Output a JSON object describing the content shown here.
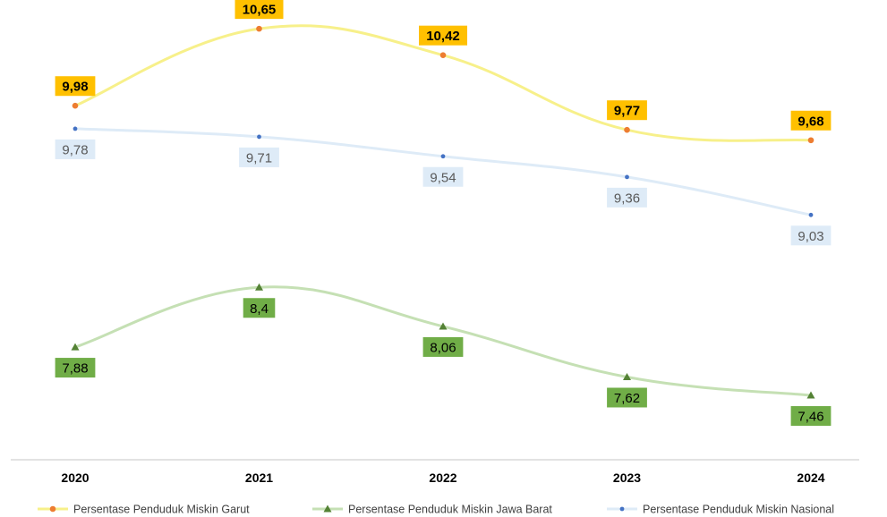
{
  "chart_data": {
    "type": "line",
    "title": "",
    "xlabel": "",
    "ylabel": "",
    "categories": [
      "2020",
      "2021",
      "2022",
      "2023",
      "2024"
    ],
    "ylim": [
      6.9,
      10.9
    ],
    "grid": false,
    "legend_position": "bottom",
    "series": [
      {
        "name": "Persentase Penduduk Miskin Garut",
        "values": [
          9.98,
          10.65,
          10.42,
          9.77,
          9.68
        ],
        "labels": [
          "9,98",
          "10,65",
          "10,42",
          "9,77",
          "9,68"
        ],
        "marker": "circle",
        "line_color": "#f7f08a",
        "marker_color": "#ed7d31",
        "label_bg": "#ffc000",
        "label_text_color": "#000000",
        "label_position": "above"
      },
      {
        "name": "Persentase Penduduk Miskin Jawa Barat",
        "values": [
          7.88,
          8.4,
          8.06,
          7.62,
          7.46
        ],
        "labels": [
          "7,88",
          "8,4",
          "8,06",
          "7,62",
          "7,46"
        ],
        "marker": "triangle",
        "line_color": "#c5e0b4",
        "marker_color": "#548235",
        "label_bg": "#70ad47",
        "label_text_color": "#000000",
        "label_position": "below"
      },
      {
        "name": "Persentase Penduduk Miskin Nasional",
        "values": [
          9.78,
          9.71,
          9.54,
          9.36,
          9.03
        ],
        "labels": [
          "9,78",
          "9,71",
          "9,54",
          "9,36",
          "9,03"
        ],
        "marker": "circle-small",
        "line_color": "#deebf7",
        "marker_color": "#4472c4",
        "label_bg": "#deebf7",
        "label_text_color": "#595959",
        "label_position": "below"
      }
    ]
  }
}
